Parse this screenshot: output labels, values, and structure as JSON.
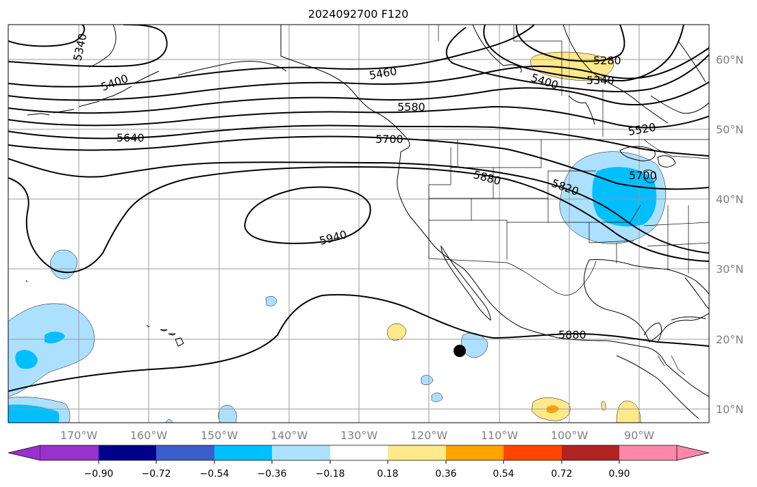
{
  "title": "2024092700 F120",
  "colors": {
    "lightblue": "#ade0ff",
    "blue": "#00bfff",
    "yellow": "#ffe98a",
    "orange": "#ffa300",
    "map_bg": "#ffffff",
    "cb_segments": [
      "#9932cc",
      "#00008b",
      "#3a5fcd",
      "#00bfff",
      "#ade0ff",
      "#ffffff",
      "#ffe98a",
      "#ffa300",
      "#ff4500",
      "#b22222",
      "#ff88aa"
    ]
  },
  "lon_labels": [
    "170°W",
    "160°W",
    "150°W",
    "140°W",
    "130°W",
    "120°W",
    "110°W",
    "100°W",
    "90°W"
  ],
  "lat_labels": [
    "60°N",
    "50°N",
    "40°N",
    "30°N",
    "20°N",
    "10°N"
  ],
  "colorbar": {
    "ticks": [
      "−0.90",
      "−0.72",
      "−0.54",
      "−0.36",
      "−0.18",
      "0.18",
      "0.36",
      "0.54",
      "0.72",
      "0.90"
    ]
  },
  "contour_labels": [
    "5340",
    "5400",
    "5460",
    "5580",
    "5640",
    "5700",
    "5880",
    "5820",
    "5940",
    "5280",
    "5340",
    "5400",
    "5520",
    "5700",
    "5880"
  ],
  "marker": "storm-center-dot"
}
